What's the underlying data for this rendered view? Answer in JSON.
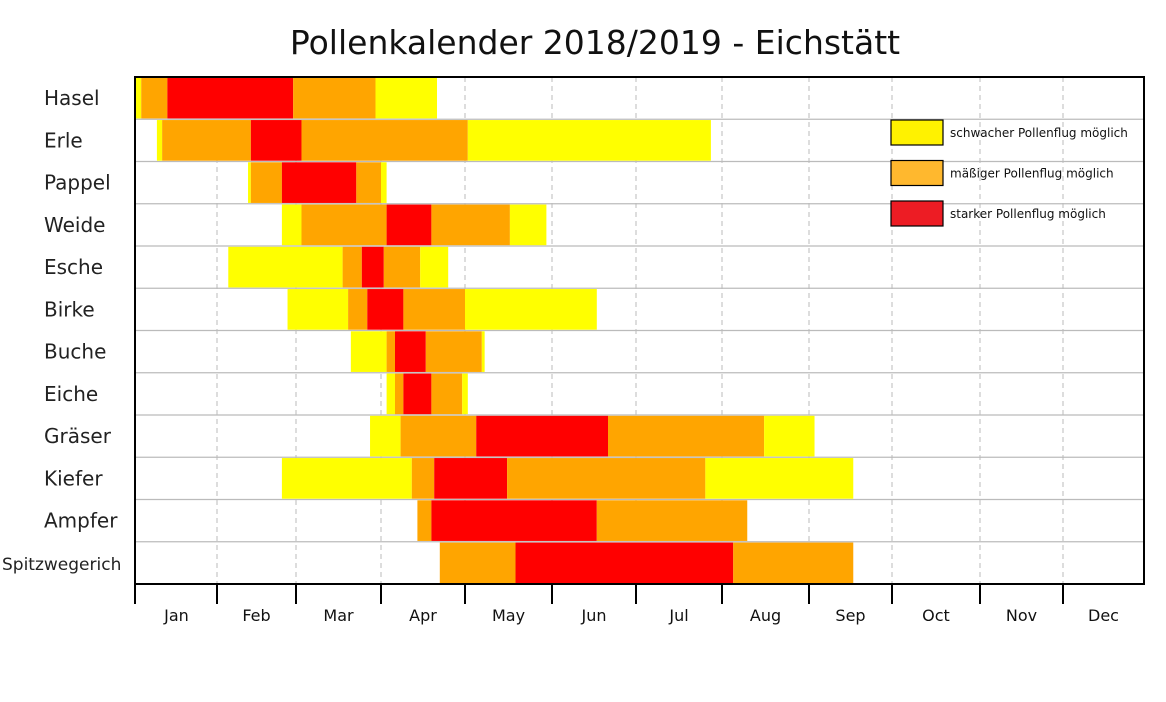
{
  "chart_data": {
    "type": "bar",
    "subtype": "horizontal-timeline",
    "title": "Pollenkalender 2018/2019 - Eichstätt",
    "x_ticks": [
      "Jan",
      "Feb",
      "Mar",
      "Apr",
      "May",
      "Jun",
      "Jul",
      "Aug",
      "Sep",
      "Oct",
      "Nov",
      "Dec"
    ],
    "grid": {
      "vertical": "dashed",
      "horizontal": "solid"
    },
    "legend_placement": "top-right",
    "levels": [
      {
        "key": "Y",
        "label": "schwacher Pollenflug möglich",
        "color": "#FFFF00",
        "swatch": "#FFF200"
      },
      {
        "key": "O",
        "label": "mäßiger Pollenflug möglich",
        "color": "#FFA500",
        "swatch": "#FFB82E"
      },
      {
        "key": "R",
        "label": "starker Pollenflug möglich",
        "color": "#FF0000",
        "swatch": "#ED1C24"
      }
    ],
    "categories": [
      "Hasel",
      "Erle",
      "Pappel",
      "Weide",
      "Esche",
      "Birke",
      "Buche",
      "Eiche",
      "Gräser",
      "Kiefer",
      "Ampfer",
      "Spitzwegerich"
    ],
    "series": [
      {
        "category": "Hasel",
        "segments": [
          [
            "01-01",
            "01-03",
            "Y"
          ],
          [
            "01-03",
            "01-13",
            "O"
          ],
          [
            "01-13",
            "02-28",
            "R"
          ],
          [
            "02-28",
            "03-30",
            "O"
          ],
          [
            "03-30",
            "04-21",
            "Y"
          ]
        ]
      },
      {
        "category": "Erle",
        "segments": [
          [
            "01-09",
            "01-11",
            "Y"
          ],
          [
            "01-11",
            "02-13",
            "O"
          ],
          [
            "02-13",
            "03-03",
            "R"
          ],
          [
            "03-03",
            "05-02",
            "O"
          ],
          [
            "05-02",
            "07-28",
            "Y"
          ]
        ]
      },
      {
        "category": "Pappel",
        "segments": [
          [
            "02-12",
            "02-13",
            "Y"
          ],
          [
            "02-13",
            "02-24",
            "O"
          ],
          [
            "02-24",
            "03-23",
            "R"
          ],
          [
            "03-23",
            "04-01",
            "O"
          ],
          [
            "04-01",
            "04-03",
            "Y"
          ]
        ]
      },
      {
        "category": "Weide",
        "segments": [
          [
            "02-24",
            "03-03",
            "Y"
          ],
          [
            "03-03",
            "04-03",
            "O"
          ],
          [
            "04-03",
            "04-19",
            "R"
          ],
          [
            "04-19",
            "05-17",
            "O"
          ],
          [
            "05-17",
            "05-30",
            "Y"
          ]
        ]
      },
      {
        "category": "Esche",
        "segments": [
          [
            "02-05",
            "03-18",
            "Y"
          ],
          [
            "03-18",
            "03-25",
            "O"
          ],
          [
            "03-25",
            "04-02",
            "R"
          ],
          [
            "04-02",
            "04-15",
            "O"
          ],
          [
            "04-15",
            "04-25",
            "Y"
          ]
        ]
      },
      {
        "category": "Birke",
        "segments": [
          [
            "02-26",
            "03-20",
            "Y"
          ],
          [
            "03-20",
            "03-27",
            "O"
          ],
          [
            "03-27",
            "04-09",
            "R"
          ],
          [
            "04-09",
            "05-01",
            "O"
          ],
          [
            "05-01",
            "06-17",
            "Y"
          ]
        ]
      },
      {
        "category": "Buche",
        "segments": [
          [
            "03-21",
            "04-03",
            "Y"
          ],
          [
            "04-03",
            "04-06",
            "O"
          ],
          [
            "04-06",
            "04-17",
            "R"
          ],
          [
            "04-17",
            "05-07",
            "O"
          ],
          [
            "05-07",
            "05-08",
            "Y"
          ]
        ]
      },
      {
        "category": "Eiche",
        "segments": [
          [
            "04-03",
            "04-06",
            "Y"
          ],
          [
            "04-06",
            "04-09",
            "O"
          ],
          [
            "04-09",
            "04-19",
            "R"
          ],
          [
            "04-19",
            "04-30",
            "O"
          ],
          [
            "04-30",
            "05-02",
            "Y"
          ]
        ]
      },
      {
        "category": "Gräser",
        "segments": [
          [
            "03-28",
            "04-08",
            "Y"
          ],
          [
            "04-08",
            "05-05",
            "O"
          ],
          [
            "05-05",
            "06-21",
            "R"
          ],
          [
            "06-21",
            "08-16",
            "O"
          ],
          [
            "08-16",
            "09-03",
            "Y"
          ]
        ]
      },
      {
        "category": "Kiefer",
        "segments": [
          [
            "02-24",
            "04-12",
            "Y"
          ],
          [
            "04-12",
            "04-20",
            "O"
          ],
          [
            "04-20",
            "05-16",
            "R"
          ],
          [
            "05-16",
            "07-26",
            "O"
          ],
          [
            "07-26",
            "09-17",
            "Y"
          ]
        ]
      },
      {
        "category": "Ampfer",
        "segments": [
          [
            "04-14",
            "04-19",
            "O"
          ],
          [
            "04-19",
            "06-17",
            "R"
          ],
          [
            "06-17",
            "08-10",
            "O"
          ]
        ]
      },
      {
        "category": "Spitzwegerich",
        "segments": [
          [
            "04-22",
            "05-19",
            "O"
          ],
          [
            "05-19",
            "08-05",
            "R"
          ],
          [
            "08-05",
            "09-17",
            "O"
          ]
        ]
      }
    ]
  }
}
